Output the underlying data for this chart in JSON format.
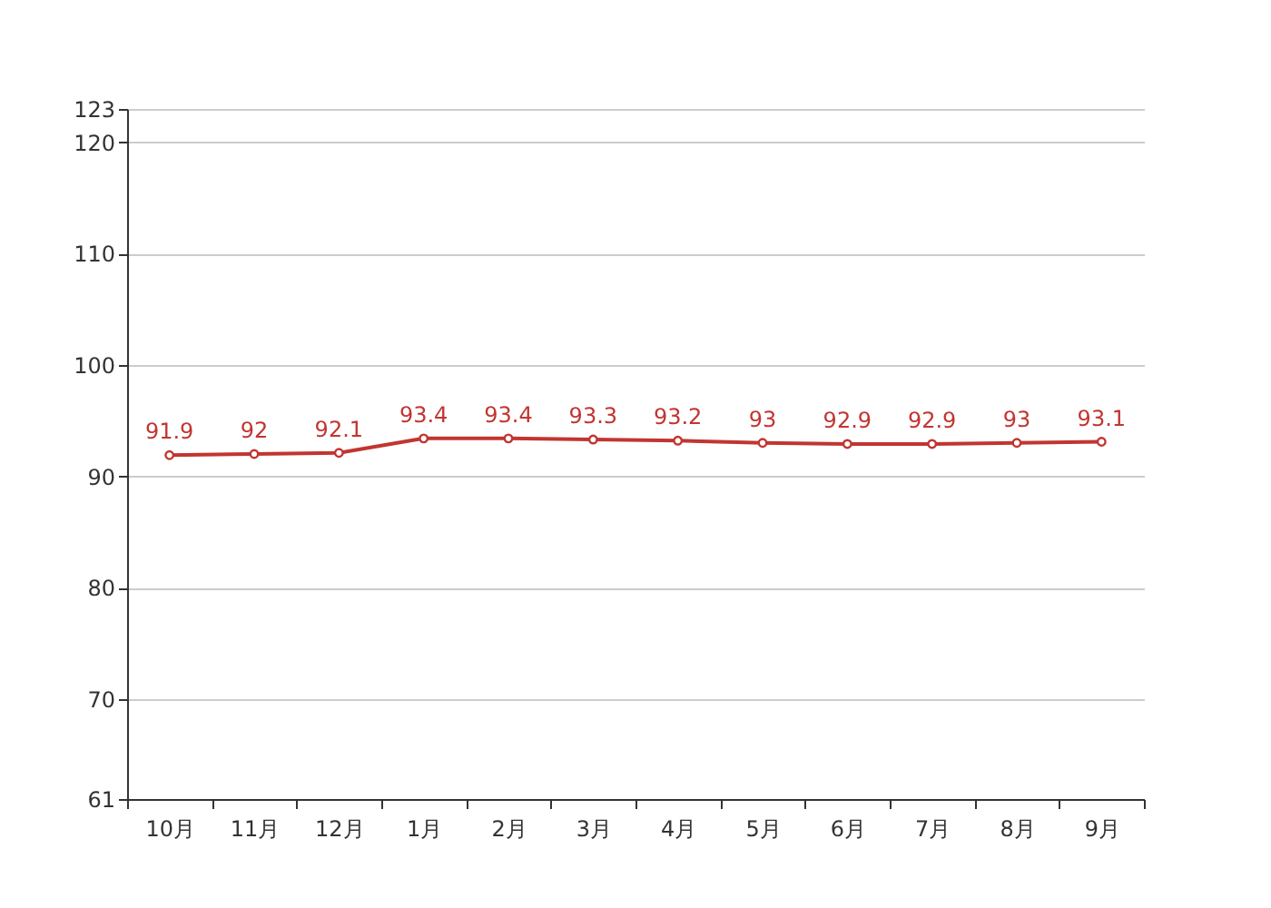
{
  "chart_data": {
    "type": "line",
    "categories": [
      "10月",
      "11月",
      "12月",
      "1月",
      "2月",
      "3月",
      "4月",
      "5月",
      "6月",
      "7月",
      "8月",
      "9月"
    ],
    "series": [
      {
        "color": "#c23531",
        "values": [
          91.9,
          92,
          92.1,
          93.4,
          93.4,
          93.3,
          93.2,
          93,
          92.9,
          92.9,
          93,
          93.1
        ]
      }
    ],
    "ylim": [
      61,
      123
    ],
    "yticks": [
      61,
      70,
      80,
      90,
      100,
      110,
      120,
      123
    ],
    "grid": "y",
    "marker": "circle",
    "data_labels": true,
    "legend": false
  }
}
